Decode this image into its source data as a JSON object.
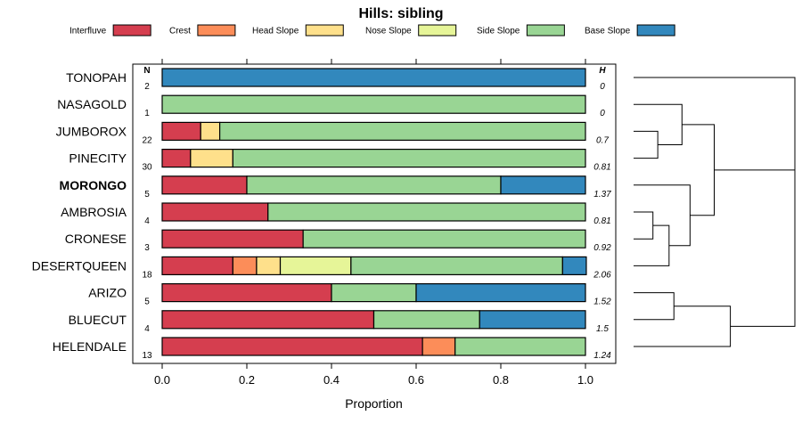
{
  "chart_data": {
    "type": "bar",
    "orientation": "horizontal",
    "stacked": true,
    "title": "Hills: sibling",
    "xlabel": "Proportion",
    "ylabel": "",
    "xlim": [
      0,
      1
    ],
    "x_ticks": [
      "0.0",
      "0.2",
      "0.4",
      "0.6",
      "0.8",
      "1.0"
    ],
    "x_tick_values": [
      0,
      0.2,
      0.4,
      0.6,
      0.8,
      1.0
    ],
    "n_header": "N",
    "h_header": "H",
    "legend": [
      {
        "label": "Interfluve",
        "color": "#d53e4f"
      },
      {
        "label": "Crest",
        "color": "#fc8d59"
      },
      {
        "label": "Head Slope",
        "color": "#fee08b"
      },
      {
        "label": "Nose Slope",
        "color": "#e6f598"
      },
      {
        "label": "Side Slope",
        "color": "#99d594"
      },
      {
        "label": "Base Slope",
        "color": "#3288bd"
      }
    ],
    "categories": [
      "TONOPAH",
      "NASAGOLD",
      "JUMBOROX",
      "PINECITY",
      "MORONGO",
      "AMBROSIA",
      "CRONESE",
      "DESERTQUEEN",
      "ARIZO",
      "BLUECUT",
      "HELENDALE"
    ],
    "highlighted": "MORONGO",
    "n_values": [
      "2",
      "1",
      "22",
      "30",
      "5",
      "4",
      "3",
      "18",
      "5",
      "4",
      "13"
    ],
    "h_values": [
      "0",
      "0",
      "0.7",
      "0.81",
      "1.37",
      "0.81",
      "0.92",
      "2.06",
      "1.52",
      "1.5",
      "1.24"
    ],
    "series": [
      {
        "name": "Interfluve",
        "values": [
          0,
          0,
          0.091,
          0.067,
          0.2,
          0.25,
          0.333,
          0.167,
          0.4,
          0.5,
          0.615
        ]
      },
      {
        "name": "Crest",
        "values": [
          0,
          0,
          0,
          0,
          0,
          0,
          0,
          0.056,
          0,
          0,
          0.077
        ]
      },
      {
        "name": "Head Slope",
        "values": [
          0,
          0,
          0.045,
          0.1,
          0,
          0,
          0,
          0.056,
          0,
          0,
          0
        ]
      },
      {
        "name": "Nose Slope",
        "values": [
          0,
          0,
          0,
          0,
          0,
          0,
          0,
          0.167,
          0,
          0,
          0
        ]
      },
      {
        "name": "Side Slope",
        "values": [
          0,
          1,
          0.864,
          0.833,
          0.6,
          0.75,
          0.667,
          0.5,
          0.2,
          0.25,
          0.308
        ]
      },
      {
        "name": "Base Slope",
        "values": [
          1,
          0,
          0,
          0,
          0.2,
          0,
          0,
          0.056,
          0.4,
          0.25,
          0
        ]
      }
    ],
    "dendrogram": {
      "description": "hierarchical clustering of the sites, drawn to the right of the panel",
      "merges": [
        {
          "id": "c1",
          "left": "JUMBOROX",
          "right": "PINECITY",
          "height": 0.15
        },
        {
          "id": "c2",
          "left": "NASAGOLD",
          "right": "c1",
          "height": 0.3
        },
        {
          "id": "c3",
          "left": "AMBROSIA",
          "right": "CRONESE",
          "height": 0.12
        },
        {
          "id": "c4",
          "left": "c3",
          "right": "DESERTQUEEN",
          "height": 0.22
        },
        {
          "id": "c5",
          "left": "MORONGO",
          "right": "c4",
          "height": 0.35
        },
        {
          "id": "c6",
          "left": "c2",
          "right": "c5",
          "height": 0.5
        },
        {
          "id": "c7",
          "left": "TONOPAH",
          "right": "c6",
          "height": 1.0
        },
        {
          "id": "c8",
          "left": "ARIZO",
          "right": "BLUECUT",
          "height": 0.25
        },
        {
          "id": "c9",
          "left": "c8",
          "right": "HELENDALE",
          "height": 0.6
        },
        {
          "id": "c10",
          "left": "c7",
          "right": "c9",
          "height": 1.0
        }
      ]
    }
  }
}
